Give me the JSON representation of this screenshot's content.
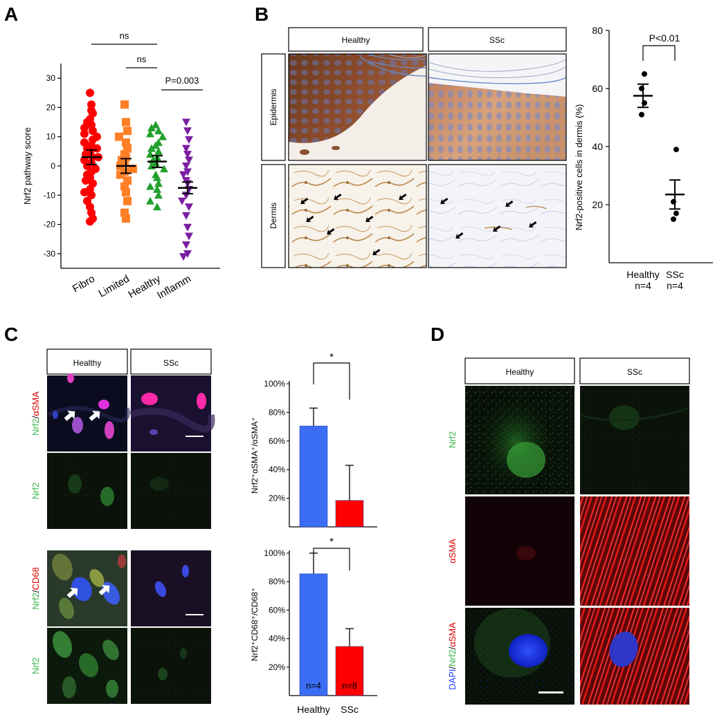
{
  "panels": {
    "A": {
      "letter": "A",
      "chart_data": {
        "type": "scatter",
        "ylabel": "Nrf2 pathway score",
        "ylim": [
          -35,
          35
        ],
        "yticks": [
          30,
          20,
          10,
          0,
          -10,
          -20,
          -30
        ],
        "groups": [
          {
            "name": "Fibro",
            "color": "#ff0000",
            "marker": "circle",
            "mean": 3,
            "sem": 2.5,
            "values": [
              25,
              21,
              18,
              16,
              14,
              12,
              11,
              10,
              9,
              8,
              7,
              6,
              5,
              4,
              3,
              2,
              1,
              0,
              -1,
              -2,
              -3,
              -4,
              -5,
              -6,
              -8,
              -10,
              -12,
              -14,
              -16,
              -18,
              -19,
              19,
              15,
              13,
              6,
              3,
              -9
            ]
          },
          {
            "name": "Limited",
            "color": "#ff7f27",
            "marker": "square",
            "mean": 0,
            "sem": 2.5,
            "values": [
              21,
              15,
              12,
              10,
              8,
              6,
              4,
              3,
              2,
              1,
              0,
              -1,
              -2,
              -3,
              -5,
              -7,
              -9,
              -12,
              -16,
              -18
            ]
          },
          {
            "name": "Healthy",
            "color": "#22a02c",
            "marker": "triangle-up",
            "mean": 1.5,
            "sem": 2,
            "values": [
              14,
              13,
              12,
              11,
              10,
              8,
              7,
              6,
              5,
              4,
              3,
              2,
              1,
              0,
              -1,
              -3,
              -4,
              -6,
              -7,
              -8,
              -10,
              -12,
              -14
            ]
          },
          {
            "name": "Inflamm",
            "color": "#7b1fa2",
            "marker": "triangle-down",
            "mean": -7.5,
            "sem": 2,
            "values": [
              15,
              12,
              9,
              6,
              4,
              2,
              0,
              -2,
              -3,
              -5,
              -6,
              -8,
              -10,
              -12,
              -14,
              -17,
              -21,
              -24,
              -27,
              -30,
              -31
            ]
          }
        ],
        "annotations": [
          {
            "text": "ns",
            "from": "Fibro",
            "to": "Healthy"
          },
          {
            "text": "ns",
            "from": "Limited",
            "to": "Healthy"
          },
          {
            "text": "P=0.003",
            "from": "Healthy",
            "to": "Inflamm"
          }
        ]
      }
    },
    "B": {
      "letter": "B",
      "columns": [
        "Healthy",
        "SSc"
      ],
      "rows": [
        "Epidermis",
        "Dermis"
      ],
      "chart_data": {
        "type": "scatter",
        "ylabel": "Nrf2-positive cells in dermis (%)",
        "ylim": [
          0,
          80
        ],
        "yticks": [
          20,
          40,
          60,
          80
        ],
        "categories": [
          "Healthy",
          "SSc"
        ],
        "sublabels": [
          "n=4",
          "n=4"
        ],
        "groups": [
          {
            "name": "Healthy",
            "mean": 57.5,
            "sem": 4,
            "values": [
              65,
              60,
              55,
              51
            ]
          },
          {
            "name": "SSc",
            "mean": 23.5,
            "sem": 5,
            "values": [
              39,
              21,
              17,
              15
            ]
          }
        ],
        "annotations": [
          {
            "text": "P<0.01"
          }
        ]
      }
    },
    "C": {
      "letter": "C",
      "columns": [
        "Healthy",
        "SSc"
      ],
      "row_labels": [
        {
          "parts": [
            {
              "t": "Nrf2",
              "c": "#3cb44b"
            },
            {
              "t": "/",
              "c": "#000"
            },
            {
              "t": "αSMA",
              "c": "#e00000"
            }
          ]
        },
        {
          "parts": [
            {
              "t": "Nrf2",
              "c": "#3cb44b"
            }
          ]
        },
        {
          "parts": [
            {
              "t": "Nrf2",
              "c": "#3cb44b"
            },
            {
              "t": "/",
              "c": "#000"
            },
            {
              "t": "CD68",
              "c": "#e00000"
            }
          ]
        },
        {
          "parts": [
            {
              "t": "Nrf2",
              "c": "#3cb44b"
            }
          ]
        }
      ],
      "chart_top": {
        "type": "bar",
        "ylabel": "Nrf2⁺αSMA⁺/αSMA⁺",
        "ylim": [
          0,
          100
        ],
        "yticks": [
          "20%",
          "40%",
          "60%",
          "80%",
          "100%"
        ],
        "categories": [
          "Healthy",
          "SSc"
        ],
        "values": [
          70.5,
          18.5
        ],
        "errors": [
          12.5,
          24.5
        ],
        "colors": [
          "#3b6ef5",
          "#ff0000"
        ],
        "annotation": "*"
      },
      "chart_bottom": {
        "type": "bar",
        "ylabel": "Nrf2⁺CD68⁺/CD68⁺",
        "ylim": [
          0,
          100
        ],
        "yticks": [
          "20%",
          "40%",
          "60%",
          "80%",
          "100%"
        ],
        "categories": [
          "Healthy",
          "SSc"
        ],
        "values": [
          85.5,
          34.5
        ],
        "errors": [
          14.5,
          12.5
        ],
        "bar_labels": [
          "n=4",
          "n=8"
        ],
        "colors": [
          "#3b6ef5",
          "#ff0000"
        ],
        "annotation": "*"
      }
    },
    "D": {
      "letter": "D",
      "columns": [
        "Healthy",
        "SSc"
      ],
      "row_labels": [
        {
          "parts": [
            {
              "t": "Nrf2",
              "c": "#3cb44b"
            }
          ]
        },
        {
          "parts": [
            {
              "t": "αSMA",
              "c": "#e00000"
            }
          ]
        },
        {
          "parts": [
            {
              "t": "DAPI",
              "c": "#1e3cff"
            },
            {
              "t": "/",
              "c": "#000"
            },
            {
              "t": "Nrf2",
              "c": "#3cb44b"
            },
            {
              "t": "/",
              "c": "#000"
            },
            {
              "t": "αSMA",
              "c": "#e00000"
            }
          ]
        }
      ]
    }
  }
}
